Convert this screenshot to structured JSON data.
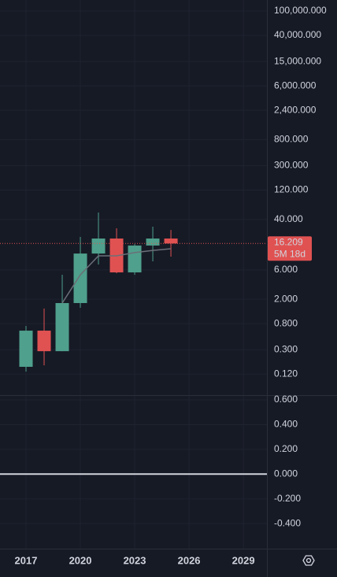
{
  "chart_data": [
    {
      "type": "candlestick",
      "x": [
        2017,
        2018,
        2019,
        2020,
        2021,
        2022,
        2023,
        2024,
        2025
      ],
      "open": [
        0.158,
        0.614,
        0.284,
        1.73,
        11.1,
        19.5,
        5.47,
        15.0,
        19.5
      ],
      "high": [
        0.733,
        1.41,
        5.0,
        20.7,
        51.8,
        28.6,
        15.8,
        30.4,
        26.9
      ],
      "low": [
        0.132,
        0.167,
        0.284,
        1.45,
        7.36,
        5.3,
        5.0,
        8.28,
        9.9
      ],
      "close": [
        0.614,
        0.284,
        1.73,
        11.1,
        19.5,
        5.47,
        15.0,
        19.5,
        16.209
      ],
      "up_color": "#4fa08c",
      "down_color": "#e05252",
      "overlay": {
        "color": "#6b6f78",
        "values": [
          null,
          null,
          1.73,
          5.0,
          10.2,
          10.2,
          11.5,
          12.5,
          13.3
        ]
      },
      "log_scale": true,
      "ylim": [
        0.0545,
        151000
      ],
      "yticks": [
        {
          "value": 100000,
          "label": "100,000.000"
        },
        {
          "value": 40000,
          "label": "40,000.000"
        },
        {
          "value": 15000,
          "label": "15,000.000"
        },
        {
          "value": 6000,
          "label": "6,000.000"
        },
        {
          "value": 2400,
          "label": "2,400.000"
        },
        {
          "value": 800,
          "label": "800.000"
        },
        {
          "value": 300,
          "label": "300.000"
        },
        {
          "value": 120,
          "label": "120.000"
        },
        {
          "value": 40,
          "label": "40.000"
        },
        {
          "value": 6,
          "label": "6.000"
        },
        {
          "value": 2,
          "label": "2.000"
        },
        {
          "value": 0.8,
          "label": "0.800"
        },
        {
          "value": 0.3,
          "label": "0.300"
        },
        {
          "value": 0.12,
          "label": "0.120"
        }
      ],
      "xlim": [
        2015.565,
        2030.3
      ],
      "xticks": [
        2017,
        2020,
        2023,
        2026,
        2029
      ],
      "grid": true,
      "last_price": 16.209,
      "countdown": "5M 18d"
    },
    {
      "type": "line",
      "level": 0,
      "color": "#d1d4dc",
      "ylim": [
        -0.603,
        0.632
      ],
      "yticks": [
        {
          "value": 0.6,
          "label": "0.600"
        },
        {
          "value": 0.4,
          "label": "0.400"
        },
        {
          "value": 0.2,
          "label": "0.200"
        },
        {
          "value": 0,
          "label": "0.000"
        },
        {
          "value": -0.2,
          "label": "-0.200"
        },
        {
          "value": -0.4,
          "label": "-0.400"
        }
      ],
      "grid": true
    }
  ]
}
